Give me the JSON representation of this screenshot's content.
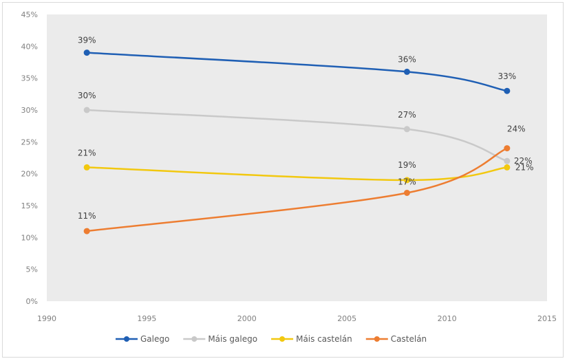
{
  "chart_data": {
    "type": "line",
    "title": "",
    "xlabel": "",
    "ylabel": "",
    "x": [
      1992,
      2008,
      2013
    ],
    "xlim": [
      1990,
      2015
    ],
    "ylim": [
      0,
      45
    ],
    "x_ticks": [
      "1990",
      "1995",
      "2000",
      "2005",
      "2010",
      "2015"
    ],
    "y_ticks": [
      "0%",
      "5%",
      "10%",
      "15%",
      "20%",
      "25%",
      "30%",
      "35%",
      "40%",
      "45%"
    ],
    "grid": false,
    "legend_position": "bottom",
    "series": [
      {
        "name": "Galego",
        "color": "#1f5fb4",
        "values": [
          39,
          36,
          33
        ],
        "labels": [
          "39%",
          "36%",
          "33%"
        ]
      },
      {
        "name": "Máis galego",
        "color": "#c9c9c9",
        "values": [
          30,
          27,
          22
        ],
        "labels": [
          "30%",
          "27%",
          "22%"
        ]
      },
      {
        "name": "Máis castelán",
        "color": "#f2c80f",
        "values": [
          21,
          19,
          21
        ],
        "labels": [
          "21%",
          "19%",
          "21%"
        ]
      },
      {
        "name": "Castelán",
        "color": "#ed7d31",
        "values": [
          11,
          17,
          24
        ],
        "labels": [
          "11%",
          "17%",
          "24%"
        ]
      }
    ]
  }
}
